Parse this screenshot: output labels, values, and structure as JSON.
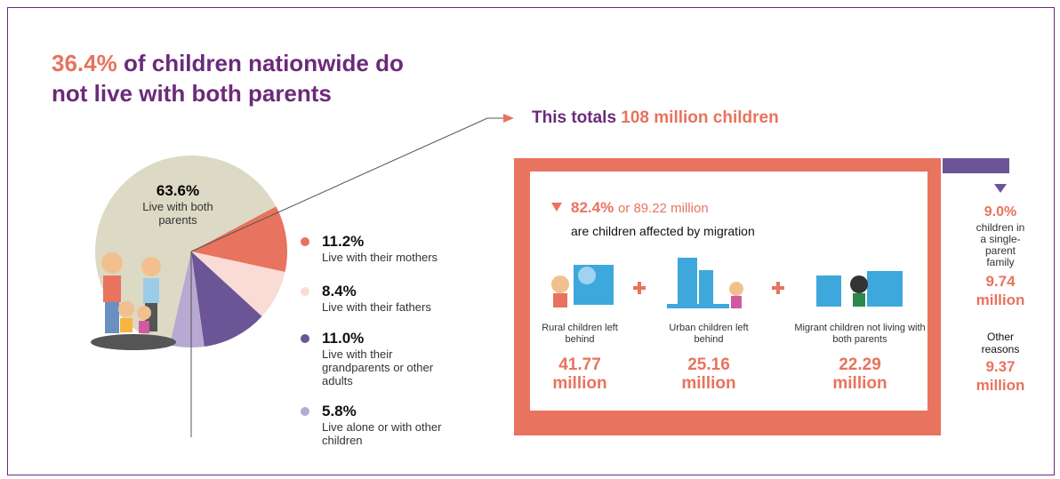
{
  "header": {
    "highlight": "36.4%",
    "title": "of children nationwide do not live with both parents"
  },
  "callout": {
    "prefix": "This totals",
    "highlight": "108 million children"
  },
  "chart_data": {
    "type": "pie",
    "categories": [
      "Live with both parents",
      "Live with their mothers",
      "Live with their fathers",
      "Live with their grandparents or other adults",
      "Live alone or with other children"
    ],
    "values": [
      63.6,
      11.2,
      8.4,
      11.0,
      5.8
    ],
    "value_labels": [
      "63.6%",
      "11.2%",
      "8.4%",
      "11.0%",
      "5.8%"
    ],
    "colors": [
      "#dcd9c5",
      "#e8735e",
      "#f9dcd6",
      "#6b5596",
      "#b7a9d1"
    ]
  },
  "migration": {
    "percent": "82.4%",
    "amount": "or 89.22 million",
    "caption": "are children affected by migration",
    "groups": [
      {
        "label": "Rural children left behind",
        "value": "41.77 million"
      },
      {
        "label": "Urban children left behind",
        "value": "25.16 million"
      },
      {
        "label": "Migrant children not living with both parents",
        "value": "22.29 million"
      }
    ]
  },
  "other": {
    "percent": "9.0%",
    "caption": "children in a single-parent family",
    "value": "9.74 million",
    "label": "Other reasons",
    "value2": "9.37 million"
  }
}
